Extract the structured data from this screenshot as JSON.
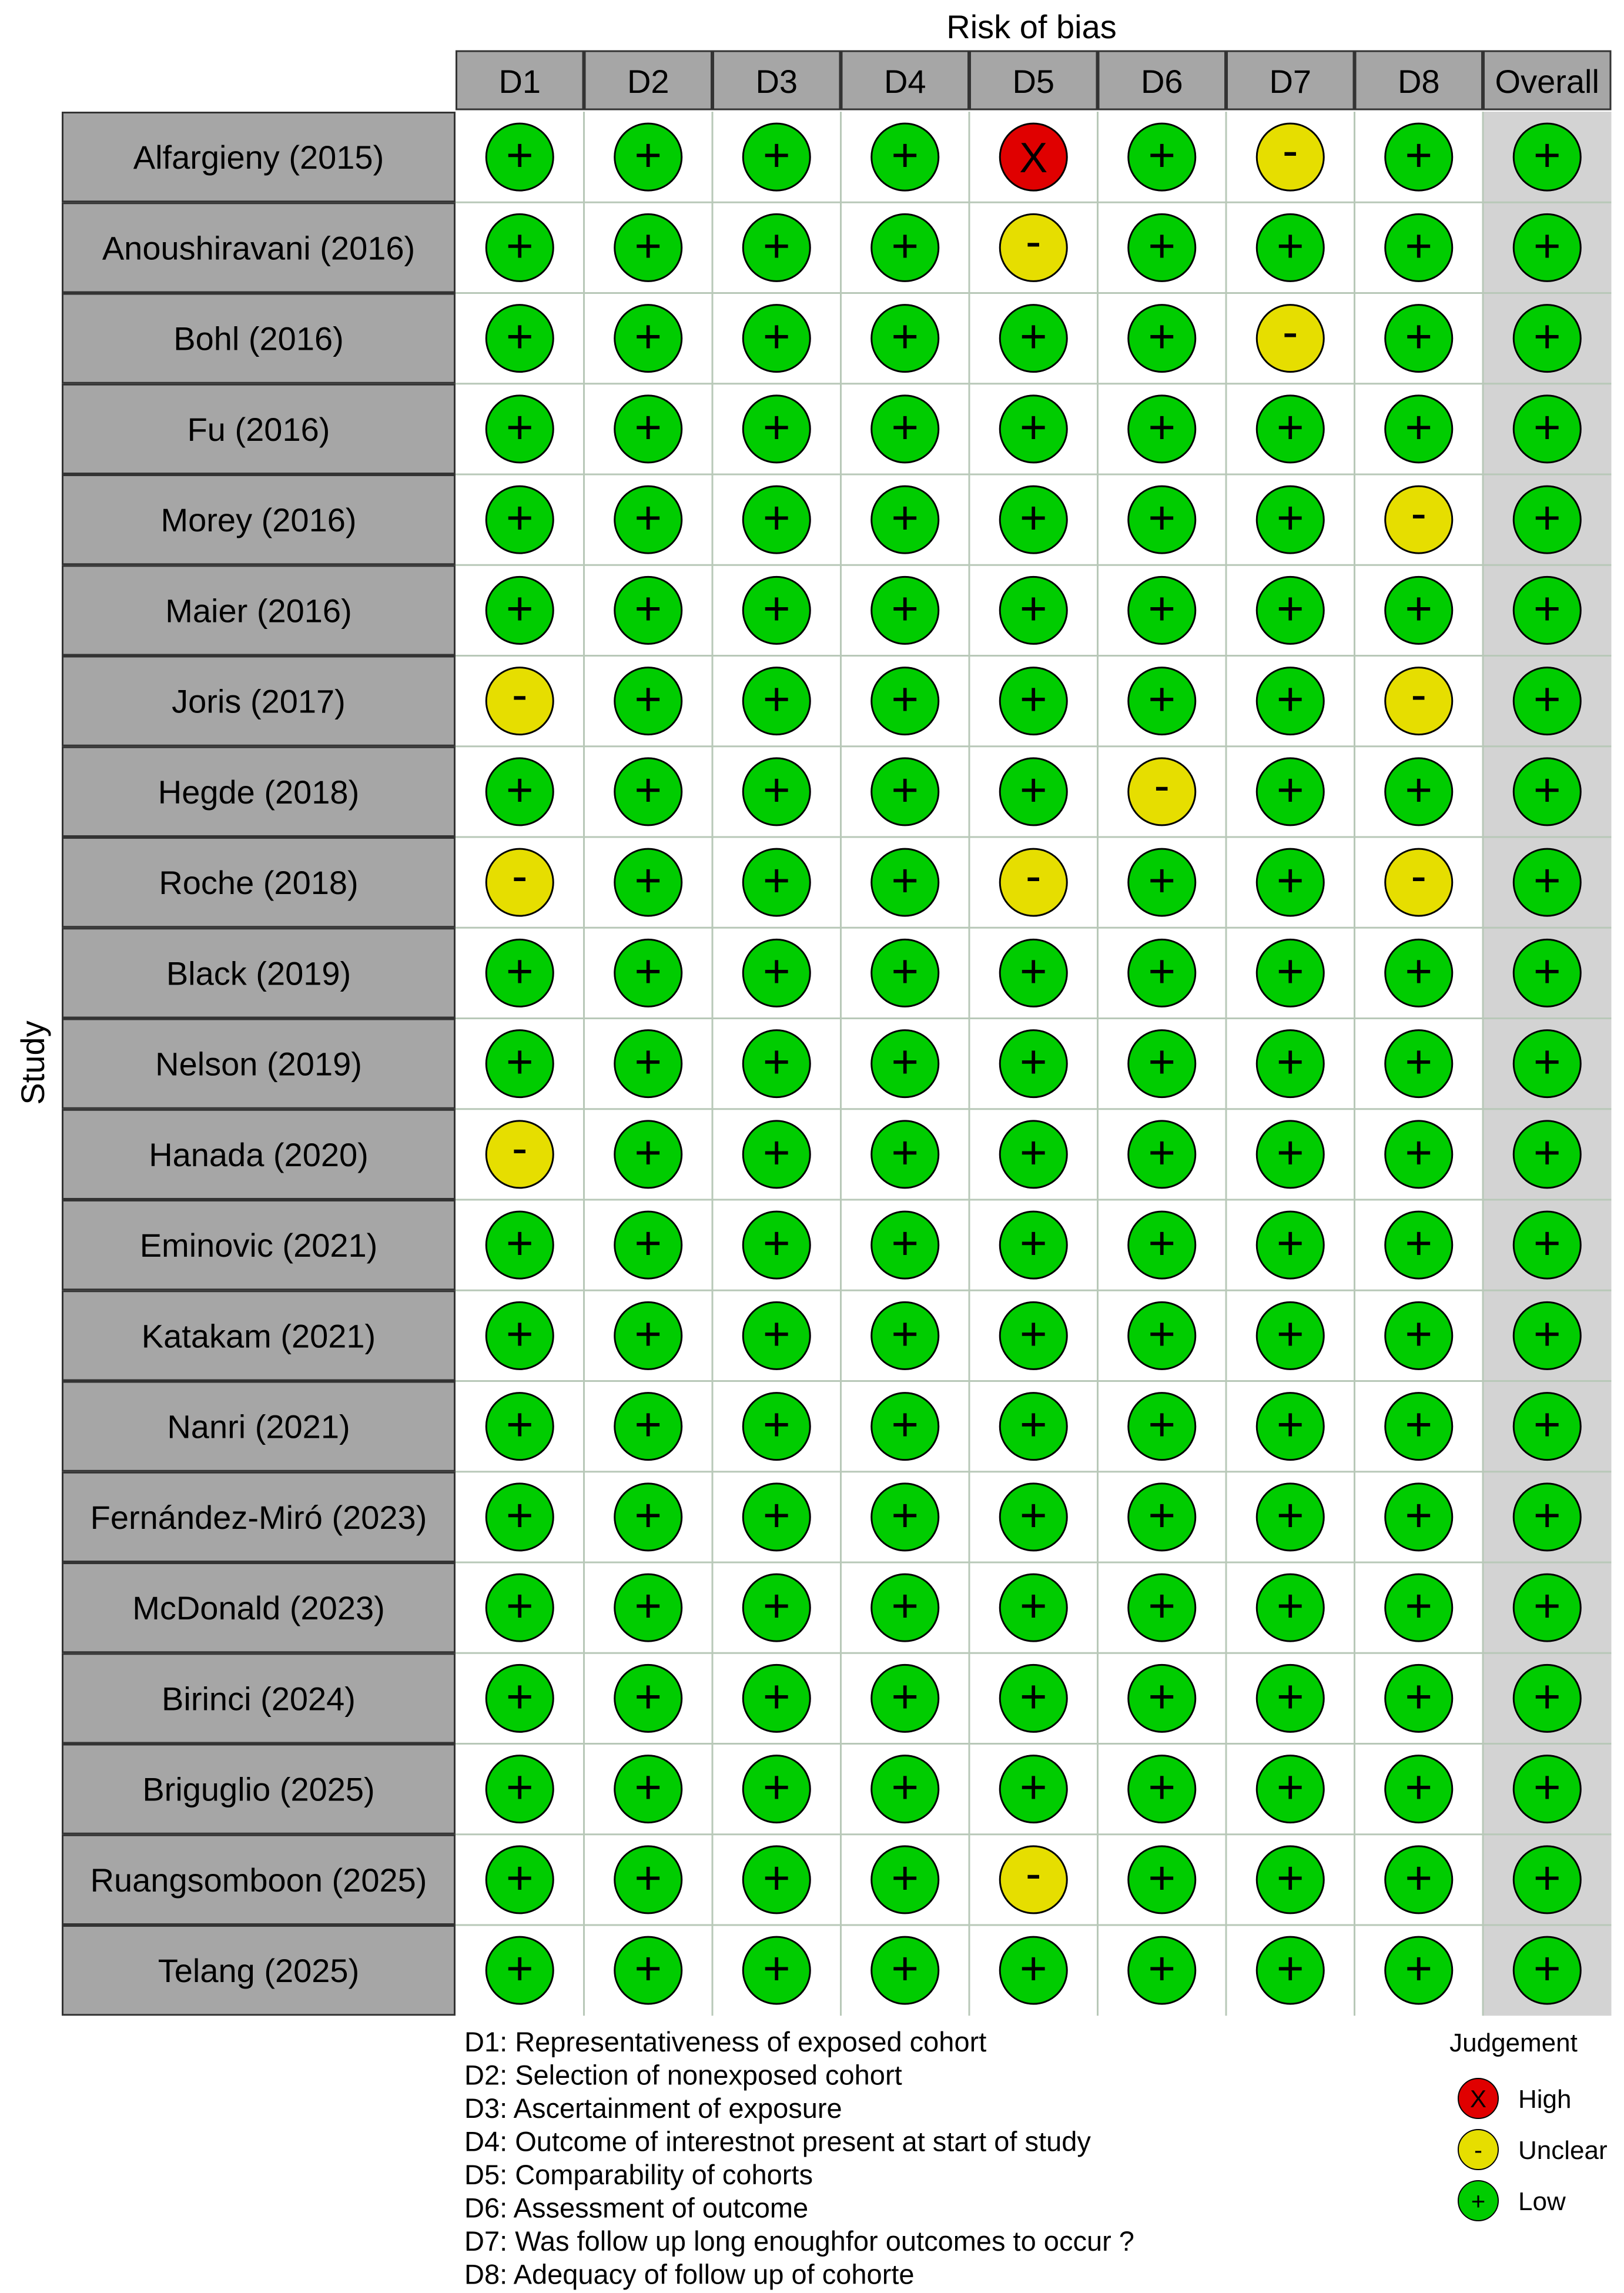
{
  "chart_data": {
    "type": "table",
    "title": "Risk of bias",
    "ylabel": "Study",
    "columns": [
      "D1",
      "D2",
      "D3",
      "D4",
      "D5",
      "D6",
      "D7",
      "D8",
      "Overall"
    ],
    "studies": [
      "Alfargieny (2015)",
      "Anoushiravani (2016)",
      "Bohl (2016)",
      "Fu (2016)",
      "Morey (2016)",
      "Maier (2016)",
      "Joris (2017)",
      "Hegde (2018)",
      "Roche (2018)",
      "Black (2019)",
      "Nelson (2019)",
      "Hanada (2020)",
      "Eminovic (2021)",
      "Katakam (2021)",
      "Nanri (2021)",
      "Fernández-Miró (2023)",
      "McDonald (2023)",
      "Birinci (2024)",
      "Briguglio (2025)",
      "Ruangsomboon (2025)",
      "Telang (2025)"
    ],
    "judgements": [
      [
        "+",
        "+",
        "+",
        "+",
        "X",
        "+",
        "-",
        "+",
        "+"
      ],
      [
        "+",
        "+",
        "+",
        "+",
        "-",
        "+",
        "+",
        "+",
        "+"
      ],
      [
        "+",
        "+",
        "+",
        "+",
        "+",
        "+",
        "-",
        "+",
        "+"
      ],
      [
        "+",
        "+",
        "+",
        "+",
        "+",
        "+",
        "+",
        "+",
        "+"
      ],
      [
        "+",
        "+",
        "+",
        "+",
        "+",
        "+",
        "+",
        "-",
        "+"
      ],
      [
        "+",
        "+",
        "+",
        "+",
        "+",
        "+",
        "+",
        "+",
        "+"
      ],
      [
        "-",
        "+",
        "+",
        "+",
        "+",
        "+",
        "+",
        "-",
        "+"
      ],
      [
        "+",
        "+",
        "+",
        "+",
        "+",
        "-",
        "+",
        "+",
        "+"
      ],
      [
        "-",
        "+",
        "+",
        "+",
        "-",
        "+",
        "+",
        "-",
        "+"
      ],
      [
        "+",
        "+",
        "+",
        "+",
        "+",
        "+",
        "+",
        "+",
        "+"
      ],
      [
        "+",
        "+",
        "+",
        "+",
        "+",
        "+",
        "+",
        "+",
        "+"
      ],
      [
        "-",
        "+",
        "+",
        "+",
        "+",
        "+",
        "+",
        "+",
        "+"
      ],
      [
        "+",
        "+",
        "+",
        "+",
        "+",
        "+",
        "+",
        "+",
        "+"
      ],
      [
        "+",
        "+",
        "+",
        "+",
        "+",
        "+",
        "+",
        "+",
        "+"
      ],
      [
        "+",
        "+",
        "+",
        "+",
        "+",
        "+",
        "+",
        "+",
        "+"
      ],
      [
        "+",
        "+",
        "+",
        "+",
        "+",
        "+",
        "+",
        "+",
        "+"
      ],
      [
        "+",
        "+",
        "+",
        "+",
        "+",
        "+",
        "+",
        "+",
        "+"
      ],
      [
        "+",
        "+",
        "+",
        "+",
        "+",
        "+",
        "+",
        "+",
        "+"
      ],
      [
        "+",
        "+",
        "+",
        "+",
        "+",
        "+",
        "+",
        "+",
        "+"
      ],
      [
        "+",
        "+",
        "+",
        "+",
        "-",
        "+",
        "+",
        "+",
        "+"
      ],
      [
        "+",
        "+",
        "+",
        "+",
        "+",
        "+",
        "+",
        "+",
        "+"
      ]
    ],
    "domain_definitions": [
      "D1: Representativeness of exposed cohort",
      "D2: Selection of nonexposed cohort",
      "D3: Ascertainment of exposure",
      "D4: Outcome of interestnot present at start of study",
      "D5: Comparability of cohorts",
      "D6: Assessment of outcome",
      "D7: Was follow up long enoughfor outcomes to occur ?",
      "D8: Adequacy of follow up of cohorte"
    ],
    "legend": {
      "title": "Judgement",
      "placement": "bottom-right",
      "items": [
        {
          "symbol": "X",
          "label": "High",
          "color": "#e00000"
        },
        {
          "symbol": "-",
          "label": "Unclear",
          "color": "#e6de00"
        },
        {
          "symbol": "+",
          "label": "Low",
          "color": "#00cc00"
        }
      ]
    },
    "colors": {
      "study_cell": "#a6a6a6",
      "header_cell": "#a6a6a6",
      "overall_column": "#d3d3d3",
      "grid_line": "#b8c8b8"
    }
  }
}
